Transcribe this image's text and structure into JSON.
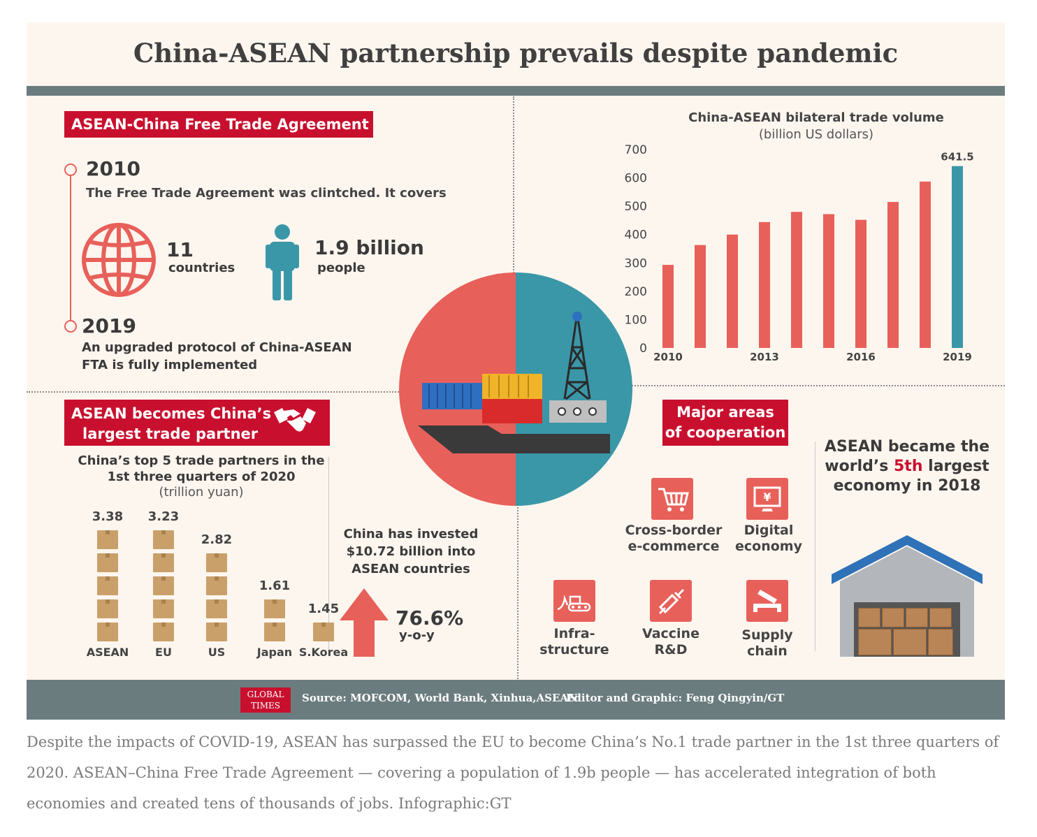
{
  "title": "China-ASEAN partnership prevails despite pandemic",
  "fta": {
    "label": "ASEAN-China  Free Trade Agreement",
    "year1": "2010",
    "text1": "The Free Trade Agreement was clintched. It covers",
    "countries_num": "11",
    "countries_label": "countries",
    "people_num": "1.9 billion",
    "people_label": "people",
    "year2": "2019",
    "text2_line1": "An upgraded protocol of China-ASEAN",
    "text2_line2": "FTA is fully implemented",
    "icon_globe": "globe-icon",
    "icon_person": "person-icon"
  },
  "partner": {
    "label_line1": "ASEAN becomes China’s",
    "label_line2": "largest trade partner",
    "icon": "handshake-icon",
    "subtitle_line1": "China’s top 5 trade partners in the",
    "subtitle_line2": "1st three quarters of 2020",
    "unit": "(trillion yuan)"
  },
  "investment": {
    "line1": "China has invested",
    "line2": "$10.72 billion into",
    "line3": "ASEAN countries",
    "pct": "76.6%",
    "yoy": "y-o-y",
    "icon": "up-arrow-icon"
  },
  "cooperation": {
    "label_line1": "Major areas",
    "label_line2": "of cooperation",
    "items": [
      {
        "line1": "Cross-border",
        "line2": "e-commerce",
        "icon": "cart-icon"
      },
      {
        "line1": "Digital",
        "line2": "economy",
        "icon": "computer-yuan-icon"
      },
      {
        "line1": "Infra-",
        "line2": "structure",
        "icon": "bulldozer-icon"
      },
      {
        "line1": "Vaccine",
        "line2": "R&D",
        "icon": "syringe-icon"
      },
      {
        "line1": "Supply",
        "line2": "chain",
        "icon": "truck-icon"
      }
    ]
  },
  "economy": {
    "line1": "ASEAN became the",
    "line2_pre": "world’s ",
    "line2_highlight": "5th",
    "line2_post": " largest",
    "line3": "economy in 2018",
    "icon": "warehouse-icon"
  },
  "footer": {
    "logo_line1": "GLOBAL",
    "logo_line2": "TIMES",
    "source": "Source: MOFCOM, World Bank, Xinhua,ASEAN",
    "editor": "Editor and Graphic: Feng Qingyin/GT"
  },
  "caption": "Despite the impacts of COVID-19, ASEAN has surpassed the EU to become China’s No.1 trade partner in the 1st three quarters of 2020. ASEAN–China Free Trade Agreement — covering a population of 1.9b people — has accelerated integration of both economies and created tens of thousands of jobs. Infographic:GT",
  "colors": {
    "red": "#c8102e",
    "coral": "#e8605a",
    "teal": "#3a97a8",
    "slate": "#6b7c7f",
    "background": "#fdf6ef"
  },
  "chart_data": [
    {
      "type": "bar",
      "title": "China-ASEAN bilateral trade volume",
      "subtitle": "(billion US dollars)",
      "x": [
        2010,
        2011,
        2012,
        2013,
        2014,
        2015,
        2016,
        2017,
        2018,
        2019
      ],
      "x_tick_labels": [
        "2010",
        "2013",
        "2016",
        "2019"
      ],
      "values": [
        293,
        363,
        400,
        444,
        480,
        472,
        452,
        515,
        587,
        641.5
      ],
      "data_labels": [
        "641.5"
      ],
      "highlight": "2019",
      "ylim": [
        0,
        700
      ],
      "yticks": [
        0,
        100,
        200,
        300,
        400,
        500,
        600,
        700
      ],
      "grid": false,
      "colors": {
        "default": "#e8605a",
        "highlight": "#3a97a8"
      }
    },
    {
      "type": "bar",
      "title": "China’s top 5 trade partners in the 1st three quarters of 2020",
      "unit": "(trillion yuan)",
      "categories": [
        "ASEAN",
        "EU",
        "US",
        "Japan",
        "S.Korea"
      ],
      "values": [
        3.38,
        3.23,
        2.82,
        1.61,
        1.45
      ],
      "value_labels": [
        "3.38",
        "3.23",
        "2.82",
        "1.61",
        "1.45"
      ],
      "boxes": [
        5,
        5,
        4,
        2,
        1
      ],
      "grid": false
    }
  ]
}
